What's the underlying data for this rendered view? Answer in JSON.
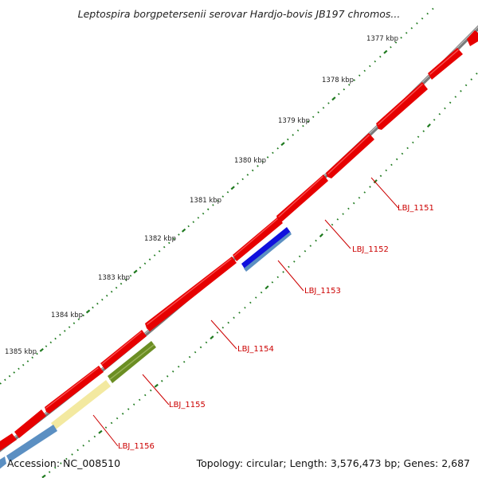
{
  "title": "Leptospira borgpetersenii serovar Hardjo-bovis JB197 chromos...",
  "ruler_labels": [
    "1377 kbp",
    "1378 kbp",
    "1379 kbp",
    "1380 kbp",
    "1381 kbp",
    "1382 kbp",
    "1383 kbp",
    "1384 kbp",
    "1385 kbp"
  ],
  "gene_labels": [
    "LBJ_1151",
    "LBJ_1152",
    "LBJ_1153",
    "LBJ_1154",
    "LBJ_1155",
    "LBJ_1156"
  ],
  "footer": {
    "accession": "Accession: NC_008510",
    "topology": "Topology: circular; Length: 3,576,473 bp; Genes: 2,687"
  },
  "colors": {
    "forward_gene": "#e60000",
    "backbone": "#8a8a8a",
    "ruler": "#1f7a1f",
    "label": "#cc0000",
    "gene_blue": "#1010dd",
    "gene_steel": "#5b8fc2",
    "gene_olive": "#6b8e23",
    "gene_yellow": "#f3e9a0"
  }
}
